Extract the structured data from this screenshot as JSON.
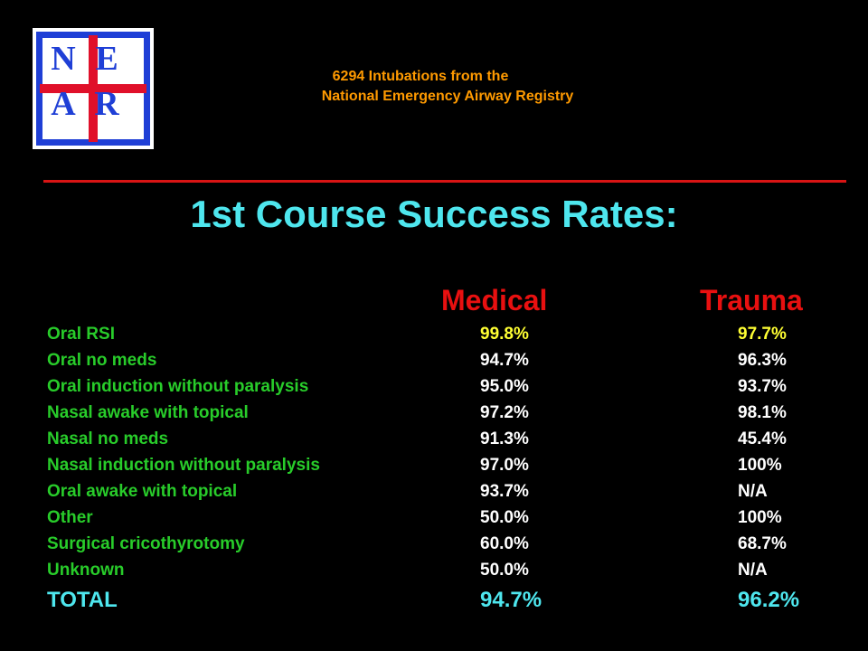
{
  "logo": {
    "letters": [
      "N",
      "E",
      "A",
      "R"
    ],
    "colors": {
      "frame": "#1f3fd6",
      "cross": "#e0102a"
    }
  },
  "header": {
    "subtitle_line1": "6294 Intubations from the",
    "subtitle_line2": "National Emergency Airway Registry"
  },
  "title": "1st Course Success Rates:",
  "columns": {
    "medical": "Medical",
    "trauma": "Trauma"
  },
  "rows": [
    {
      "label": "Oral RSI",
      "medical": "99.8%",
      "trauma": "97.7%"
    },
    {
      "label": "Oral no meds",
      "medical": "94.7%",
      "trauma": "96.3%"
    },
    {
      "label": "Oral induction without paralysis",
      "medical": "95.0%",
      "trauma": "93.7%"
    },
    {
      "label": "Nasal awake with topical",
      "medical": "97.2%",
      "trauma": "98.1%"
    },
    {
      "label": "Nasal no meds",
      "medical": "91.3%",
      "trauma": "45.4%"
    },
    {
      "label": "Nasal induction without paralysis",
      "medical": "97.0%",
      "trauma": "100%"
    },
    {
      "label": "Oral awake with topical",
      "medical": "93.7%",
      "trauma": "N/A"
    },
    {
      "label": "Other",
      "medical": "50.0%",
      "trauma": "100%"
    },
    {
      "label": "Surgical cricothyrotomy",
      "medical": "60.0%",
      "trauma": "68.7%"
    },
    {
      "label": "Unknown",
      "medical": "50.0%",
      "trauma": "N/A"
    }
  ],
  "total": {
    "label": "TOTAL",
    "medical": "94.7%",
    "trauma": "96.2%"
  },
  "colors": {
    "background": "#000000",
    "title": "#4ee6ee",
    "subtitle": "#ff9a00",
    "rule": "#d81414",
    "column_header": "#e81010",
    "row_label": "#28cc2a",
    "value": "#ffffff",
    "highlight_value": "#ffff33"
  }
}
